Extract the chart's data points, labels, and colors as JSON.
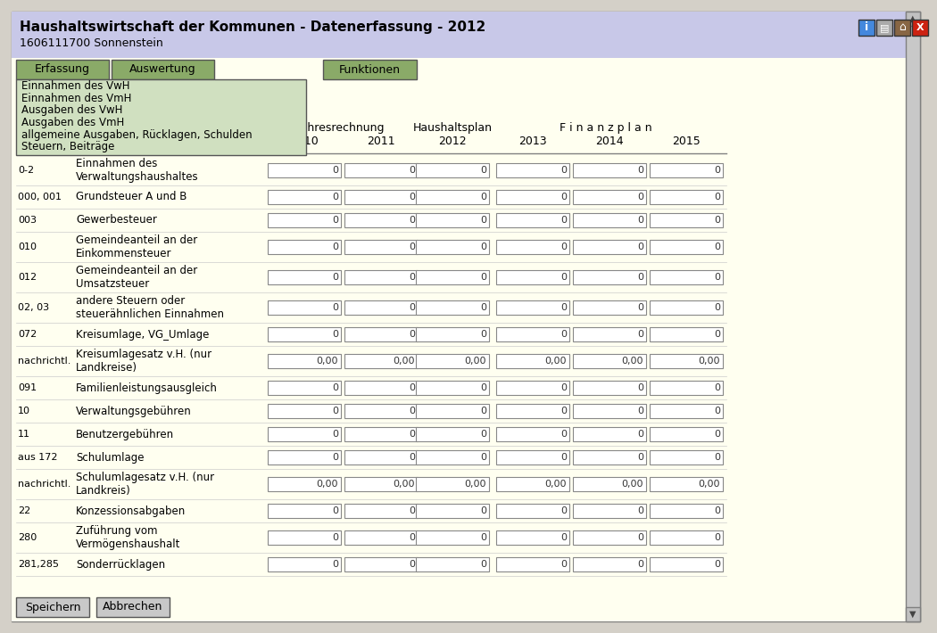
{
  "title": "Haushaltswirtschaft der Kommunen - Datenerfassung - 2012",
  "subtitle": "1606111700 Sonnenstein",
  "header_bg": "#c8c8e8",
  "body_bg": "#fffff0",
  "menu_bg": "#7a9e5a",
  "dropdown_bg": "#d0e0c0",
  "button_bg": "#c0c0c0",
  "input_bg": "#ffffff",
  "border_color": "#808080",
  "tab_active_bg": "#8aaa68",
  "tab_border": "#555555",
  "rows": [
    {
      "code": "0-2",
      "label": "Einnahmen des\nVerwaltungshaushaltes",
      "values": [
        "0",
        "0",
        "0",
        "0",
        "0",
        "0"
      ],
      "decimal": false
    },
    {
      "code": "000, 001",
      "label": "Grundsteuer A und B",
      "values": [
        "0",
        "0",
        "0",
        "0",
        "0",
        "0"
      ],
      "decimal": false
    },
    {
      "code": "003",
      "label": "Gewerbesteuer",
      "values": [
        "0",
        "0",
        "0",
        "0",
        "0",
        "0"
      ],
      "decimal": false
    },
    {
      "code": "010",
      "label": "Gemeindeanteil an der\nEinkommensteuer",
      "values": [
        "0",
        "0",
        "0",
        "0",
        "0",
        "0"
      ],
      "decimal": false
    },
    {
      "code": "012",
      "label": "Gemeindeanteil an der\nUmsatzsteuer",
      "values": [
        "0",
        "0",
        "0",
        "0",
        "0",
        "0"
      ],
      "decimal": false
    },
    {
      "code": "02, 03",
      "label": "andere Steuern oder\nsteuerähnlichen Einnahmen",
      "values": [
        "0",
        "0",
        "0",
        "0",
        "0",
        "0"
      ],
      "decimal": false
    },
    {
      "code": "072",
      "label": "Kreisumlage, VG_Umlage",
      "values": [
        "0",
        "0",
        "0",
        "0",
        "0",
        "0"
      ],
      "decimal": false
    },
    {
      "code": "nachrichtl.",
      "label": "Kreisumlagesatz v.H. (nur\nLandkreise)",
      "values": [
        "0,00",
        "0,00",
        "0,00",
        "0,00",
        "0,00",
        "0,00"
      ],
      "decimal": true
    },
    {
      "code": "091",
      "label": "Familienleistungsausgleich",
      "values": [
        "0",
        "0",
        "0",
        "0",
        "0",
        "0"
      ],
      "decimal": false
    },
    {
      "code": "10",
      "label": "Verwaltungsgebühren",
      "values": [
        "0",
        "0",
        "0",
        "0",
        "0",
        "0"
      ],
      "decimal": false
    },
    {
      "code": "11",
      "label": "Benutzergebühren",
      "values": [
        "0",
        "0",
        "0",
        "0",
        "0",
        "0"
      ],
      "decimal": false
    },
    {
      "code": "aus 172",
      "label": "Schulumlage",
      "values": [
        "0",
        "0",
        "0",
        "0",
        "0",
        "0"
      ],
      "decimal": false
    },
    {
      "code": "nachrichtl.",
      "label": "Schulumlagesatz v.H. (nur\nLandkreis)",
      "values": [
        "0,00",
        "0,00",
        "0,00",
        "0,00",
        "0,00",
        "0,00"
      ],
      "decimal": true
    },
    {
      "code": "22",
      "label": "Konzessionsabgaben",
      "values": [
        "0",
        "0",
        "0",
        "0",
        "0",
        "0"
      ],
      "decimal": false
    },
    {
      "code": "280",
      "label": "Zuführung vom\nVermögenshaushalt",
      "values": [
        "0",
        "0",
        "0",
        "0",
        "0",
        "0"
      ],
      "decimal": false
    },
    {
      "code": "281,285",
      "label": "Sonderrücklagen",
      "values": [
        "0",
        "0",
        "0",
        "0",
        "0",
        "0"
      ],
      "decimal": false
    }
  ],
  "dropdown_items": [
    "Einnahmen des VwH",
    "Einnahmen des VmH",
    "Ausgaben des VwH",
    "Ausgaben des VmH",
    "allgemeine Ausgaben, Rücklagen, Schulden",
    "Steuern, Beiträge"
  ],
  "years": [
    "2010",
    "2011",
    "2012",
    "2013",
    "2014",
    "2015"
  ],
  "group_labels": [
    "Jahresrechnung",
    "Haushaltsplan",
    "F i n a n z p l a n"
  ],
  "buttons": [
    "Speichern",
    "Abbrechen"
  ]
}
